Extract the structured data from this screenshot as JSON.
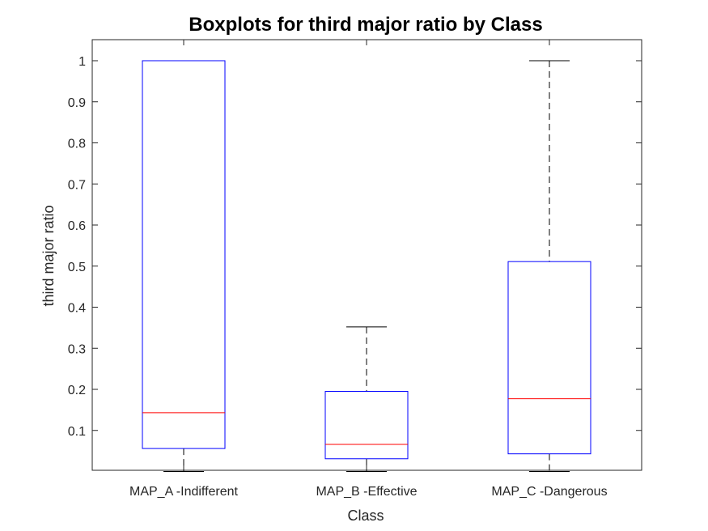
{
  "chart_data": {
    "type": "boxplot",
    "title": "Boxplots for third major ratio by Class",
    "xlabel": "Class",
    "ylabel": "third major ratio",
    "categories": [
      "MAP_A -Indifferent",
      "MAP_B -Effective",
      "MAP_C -Dangerous"
    ],
    "yticks": [
      "0.1",
      "0.2",
      "0.3",
      "0.4",
      "0.5",
      "0.6",
      "0.7",
      "0.8",
      "0.9",
      "1"
    ],
    "ylim": [
      0.0,
      1.05
    ],
    "grid": false,
    "boxes": [
      {
        "category": "MAP_A -Indifferent",
        "whisker_low": 0.0,
        "q1": 0.056,
        "median": 0.143,
        "q3": 1.0,
        "whisker_high": 1.0
      },
      {
        "category": "MAP_B -Effective",
        "whisker_low": 0.0,
        "q1": 0.031,
        "median": 0.066,
        "q3": 0.195,
        "whisker_high": 0.352
      },
      {
        "category": "MAP_C -Dangerous",
        "whisker_low": 0.0,
        "q1": 0.043,
        "median": 0.177,
        "q3": 0.511,
        "whisker_high": 1.0
      }
    ],
    "colors": {
      "box": "#0000ff",
      "median": "#ff0000",
      "whisker": "#000000",
      "axis": "#262626"
    }
  }
}
